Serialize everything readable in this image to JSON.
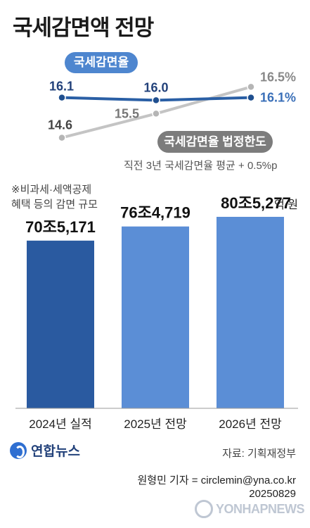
{
  "title": "국세감면액 전망",
  "chart_data": [
    {
      "type": "line",
      "x": [
        "2024",
        "2025",
        "2026"
      ],
      "series": [
        {
          "name": "국세감면율",
          "values": [
            16.1,
            16.0,
            16.1
          ],
          "labels": [
            "16.1",
            "16.0",
            "16.1%"
          ],
          "color": "#2a5fa5"
        },
        {
          "name": "국세감면율 법정한도",
          "values": [
            14.6,
            15.5,
            16.5
          ],
          "labels": [
            "14.6",
            "15.5",
            "16.5%"
          ],
          "color": "#c4c4c4"
        }
      ],
      "ylim": [
        14.3,
        16.8
      ],
      "annotation": "직전 3년 국세감면율 평균 + 0.5%p"
    },
    {
      "type": "bar",
      "categories": [
        "2024년 실적",
        "2025년 전망",
        "2026년 전망"
      ],
      "values": [
        705171,
        764719,
        805277
      ],
      "labels": [
        "70조5,171",
        "76조4,719",
        "80조5,277"
      ],
      "unit": "억 원",
      "colors": [
        "#2a5aa0",
        "#5b8ed6",
        "#5b8ed6"
      ],
      "ylim": [
        0,
        900000
      ]
    }
  ],
  "note": [
    "※비과세·세액공제",
    "혜택 등의 감면 규모"
  ],
  "source": "자료: 기획재정부",
  "logo": "연합뉴스",
  "credit": [
    "원형민 기자 = circlemin@yna.co.kr",
    "20250829"
  ],
  "watermark": "YONHAPNEWS"
}
